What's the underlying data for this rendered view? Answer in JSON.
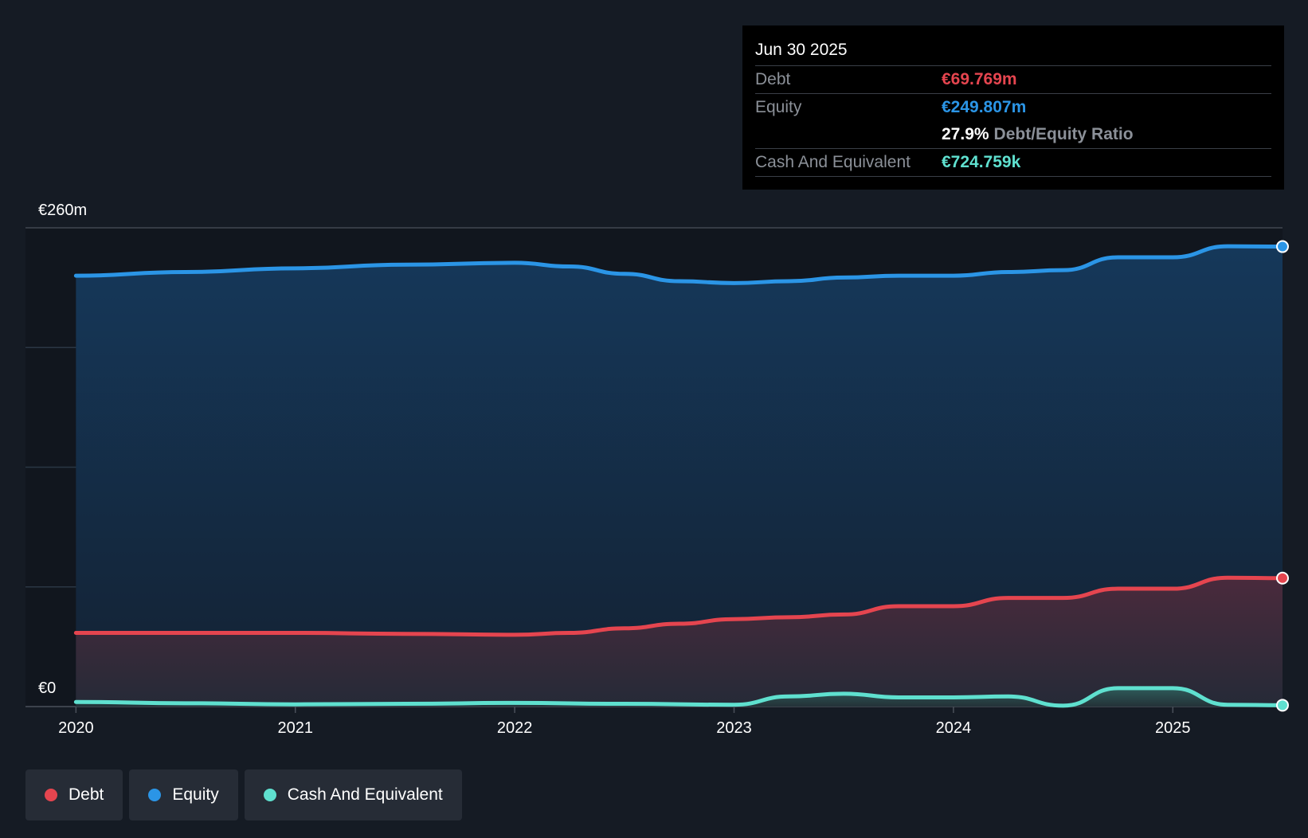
{
  "tooltip": {
    "date": "Jun 30 2025",
    "debt_label": "Debt",
    "debt_value": "€69.769m",
    "equity_label": "Equity",
    "equity_value": "€249.807m",
    "ratio_value": "27.9%",
    "ratio_label": "Debt/Equity Ratio",
    "cash_label": "Cash And Equivalent",
    "cash_value": "€724.759k"
  },
  "legend": {
    "debt": "Debt",
    "equity": "Equity",
    "cash": "Cash And Equivalent"
  },
  "colors": {
    "debt": "#e5454f",
    "equity": "#2b95e6",
    "cash": "#5fe0cf",
    "background": "#151b24"
  },
  "chart_data": {
    "type": "area",
    "title": "",
    "y_top_label": "€260m",
    "y_bottom_label": "€0",
    "ylim": [
      0,
      260
    ],
    "x_ticks": [
      "2020",
      "2021",
      "2022",
      "2023",
      "2024",
      "2025"
    ],
    "x_tick_values": [
      2020,
      2021,
      2022,
      2023,
      2024,
      2025
    ],
    "xlim": [
      2019.77,
      2025.5
    ],
    "series": [
      {
        "name": "Equity",
        "key": "equity",
        "points": [
          [
            2020.0,
            234
          ],
          [
            2020.5,
            236
          ],
          [
            2021.0,
            238
          ],
          [
            2021.5,
            240
          ],
          [
            2022.0,
            241
          ],
          [
            2022.25,
            239
          ],
          [
            2022.5,
            235
          ],
          [
            2022.75,
            231
          ],
          [
            2023.0,
            230
          ],
          [
            2023.25,
            231
          ],
          [
            2023.5,
            233
          ],
          [
            2023.75,
            234
          ],
          [
            2024.0,
            234
          ],
          [
            2024.25,
            236
          ],
          [
            2024.5,
            237
          ],
          [
            2024.75,
            244
          ],
          [
            2025.0,
            244
          ],
          [
            2025.25,
            250
          ],
          [
            2025.5,
            249.807
          ]
        ]
      },
      {
        "name": "Debt",
        "key": "debt",
        "points": [
          [
            2020.0,
            40
          ],
          [
            2020.5,
            40
          ],
          [
            2021.0,
            40
          ],
          [
            2021.5,
            39.5
          ],
          [
            2022.0,
            39
          ],
          [
            2022.25,
            40
          ],
          [
            2022.5,
            42.5
          ],
          [
            2022.75,
            45
          ],
          [
            2023.0,
            47.5
          ],
          [
            2023.25,
            48.5
          ],
          [
            2023.5,
            50
          ],
          [
            2023.75,
            54.5
          ],
          [
            2024.0,
            54.5
          ],
          [
            2024.25,
            59
          ],
          [
            2024.5,
            59
          ],
          [
            2024.75,
            64
          ],
          [
            2025.0,
            64
          ],
          [
            2025.25,
            70
          ],
          [
            2025.5,
            69.769
          ]
        ]
      },
      {
        "name": "Cash And Equivalent",
        "key": "cash",
        "points": [
          [
            2020.0,
            2.5
          ],
          [
            2020.5,
            1.8
          ],
          [
            2021.0,
            1.2
          ],
          [
            2021.5,
            1.5
          ],
          [
            2022.0,
            2
          ],
          [
            2022.5,
            1.5
          ],
          [
            2023.0,
            1
          ],
          [
            2023.25,
            5.5
          ],
          [
            2023.5,
            7
          ],
          [
            2023.75,
            5
          ],
          [
            2024.0,
            5
          ],
          [
            2024.25,
            5.5
          ],
          [
            2024.5,
            0.5
          ],
          [
            2024.75,
            10
          ],
          [
            2025.0,
            10
          ],
          [
            2025.25,
            1
          ],
          [
            2025.5,
            0.725
          ]
        ]
      }
    ]
  }
}
